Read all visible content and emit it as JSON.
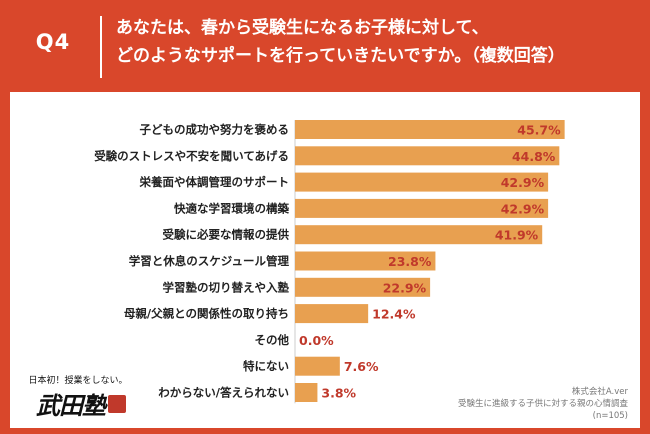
{
  "header": {
    "q_number": "Q4",
    "question_line1": "あなたは、春から受験生になるお子様に対して、",
    "question_line2": "どのようなサポートを行っていきたいですか。（複数回答）"
  },
  "colors": {
    "background": "#d9472b",
    "bar": "#e8a050",
    "value_text": "#c0392b"
  },
  "chart_data": {
    "type": "bar",
    "orientation": "horizontal",
    "categories": [
      "子どもの成功や努力を褒める",
      "受験のストレスや不安を聞いてあげる",
      "栄養面や体調管理のサポート",
      "快適な学習環境の構築",
      "受験に必要な情報の提供",
      "学習と休息のスケジュール管理",
      "学習塾の切り替えや入塾",
      "母親/父親との関係性の取り持ち",
      "その他",
      "特にない",
      "わからない/答えられない"
    ],
    "values": [
      45.7,
      44.8,
      42.9,
      42.9,
      41.9,
      23.8,
      22.9,
      12.4,
      0.0,
      7.6,
      3.8
    ],
    "value_labels": [
      "45.7%",
      "44.8%",
      "42.9%",
      "42.9%",
      "41.9%",
      "23.8%",
      "22.9%",
      "12.4%",
      "0.0%",
      "7.6%",
      "3.8%"
    ],
    "unit": "%",
    "xlim": [
      0,
      50
    ],
    "grid": false,
    "legend": "none"
  },
  "logo": {
    "caption": "日本初！授業をしない。",
    "mark": "武田塾"
  },
  "source": {
    "company": "株式会社A.ver",
    "survey": "受験生に進級する子供に対する親の心情調査",
    "n": "(n=105)"
  }
}
